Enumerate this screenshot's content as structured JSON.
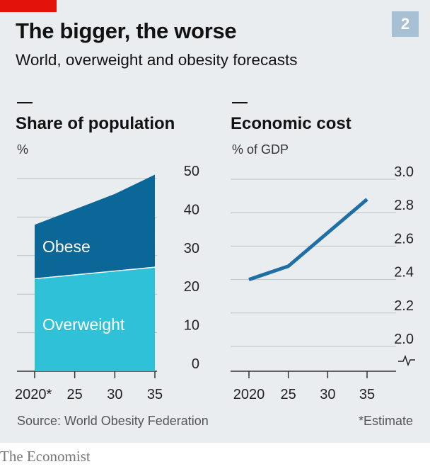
{
  "header": {
    "title": "The bigger, the worse",
    "subtitle": "World, overweight and obesity forecasts",
    "badge": "2"
  },
  "footer": {
    "source": "Source: World Obesity Federation",
    "note": "*Estimate",
    "brand": "The Economist"
  },
  "colors": {
    "obese": "#0b6797",
    "overweight": "#2fc1d8",
    "line": "#1f6fa6",
    "accent": "#e3120b",
    "badge": "#a7c0d4"
  },
  "chart_data": [
    {
      "type": "area",
      "title": "Share of population",
      "ylabel": "%",
      "x": [
        2020,
        2025,
        2030,
        2035
      ],
      "x_tick_labels": [
        "2020*",
        "25",
        "30",
        "35"
      ],
      "ylim": [
        0,
        50
      ],
      "y_ticks": [
        0,
        10,
        20,
        30,
        40,
        50
      ],
      "stacked": true,
      "series": [
        {
          "name": "Overweight",
          "values": [
            24,
            25,
            26,
            27
          ]
        },
        {
          "name": "Obese",
          "values": [
            14,
            17,
            20,
            24
          ]
        }
      ],
      "grid": true
    },
    {
      "type": "line",
      "title": "Economic cost",
      "ylabel": "% of GDP",
      "x": [
        2020,
        2025,
        2030,
        2035
      ],
      "x_tick_labels": [
        "2020",
        "25",
        "30",
        "35"
      ],
      "ylim": [
        2.0,
        3.0
      ],
      "y_ticks": [
        2.0,
        2.2,
        2.4,
        2.6,
        2.8,
        3.0
      ],
      "axis_break": true,
      "series": [
        {
          "values": [
            2.4,
            2.48,
            2.68,
            2.88
          ]
        }
      ],
      "grid": true
    }
  ]
}
